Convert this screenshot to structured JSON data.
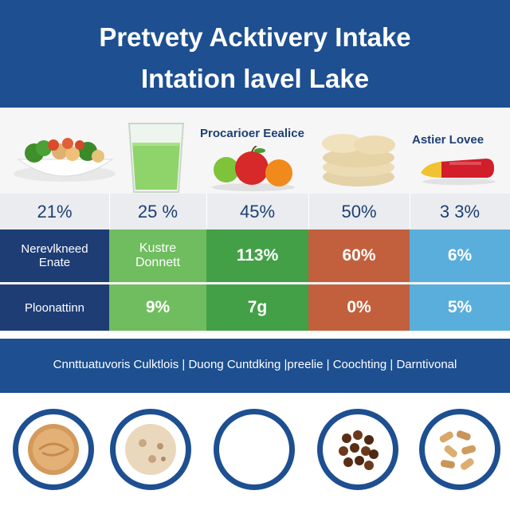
{
  "header": {
    "title_line1": "Pretvety Acktivery Intake",
    "title_line2": "Intation lavel Lake"
  },
  "columns": [
    {
      "image": "salad-bowl-image",
      "title": ""
    },
    {
      "image": "green-juice-glass-image",
      "title": ""
    },
    {
      "image": "fruit-image",
      "title": "Procarioer Eealice"
    },
    {
      "image": "cracker-stack-image",
      "title": ""
    },
    {
      "image": "capsule-image",
      "title": "Astier Lovee"
    }
  ],
  "percent_row": [
    "21%",
    "25 %",
    "45%",
    "50%",
    "3 3%"
  ],
  "rows": [
    {
      "label_line1": "Nerevlkneed",
      "label_line2": "Enate",
      "values": [
        {
          "line1": "Kustre",
          "line2": "Donnett"
        },
        {
          "line1": "113%",
          "line2": ""
        },
        {
          "line1": "60%",
          "line2": ""
        },
        {
          "line1": "6%",
          "line2": ""
        }
      ]
    },
    {
      "label_line1": "Ploonattinn",
      "label_line2": "",
      "values": [
        {
          "line1": "9%",
          "line2": ""
        },
        {
          "line1": "7g",
          "line2": ""
        },
        {
          "line1": "0%",
          "line2": ""
        },
        {
          "line1": "5%",
          "line2": ""
        }
      ]
    }
  ],
  "banner": {
    "text": "Cnnttuatuvoris Culktlois | Duong Cuntdking |preelie | Coochting | Darntivonal"
  },
  "bottom_icons": [
    "peanut-butter-icon",
    "flatbread-icon",
    "empty-plate-icon",
    "coffee-beans-icon",
    "nuts-icon"
  ],
  "colors": {
    "header_blue": "#1d4f91",
    "label_navy": "#1e3d75",
    "light_green": "#6fbd5f",
    "green": "#43a047",
    "terracotta": "#c2603e",
    "sky_blue": "#5aaedb"
  }
}
